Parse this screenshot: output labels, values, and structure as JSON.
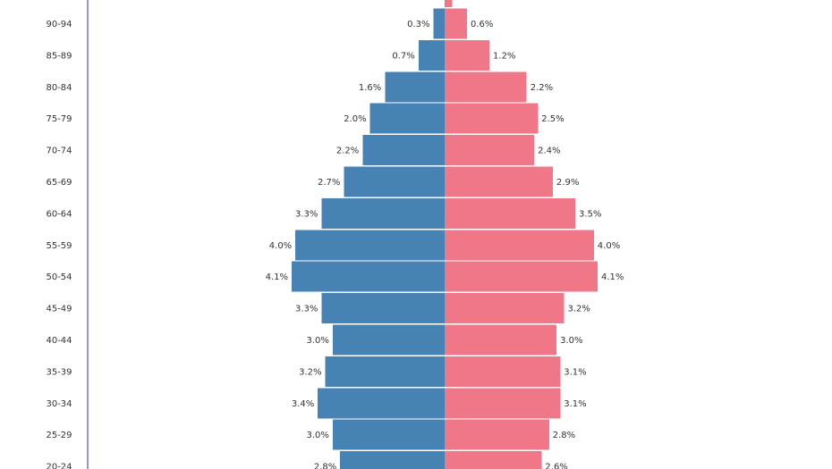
{
  "chart_data": {
    "type": "bar",
    "orientation": "horizontal",
    "layout": "population-pyramid",
    "categories": [
      "90-94",
      "85-89",
      "80-84",
      "75-79",
      "70-74",
      "65-69",
      "60-64",
      "55-59",
      "50-54",
      "45-49",
      "40-44",
      "35-39",
      "30-34",
      "25-29",
      "20-24"
    ],
    "series": [
      {
        "side": "left",
        "color": "#4682b4",
        "values": [
          0.3,
          0.7,
          1.6,
          2.0,
          2.2,
          2.7,
          3.3,
          4.0,
          4.1,
          3.3,
          3.0,
          3.2,
          3.4,
          3.0,
          2.8
        ],
        "labels": [
          "0.3%",
          "0.7%",
          "1.6%",
          "2.0%",
          "2.2%",
          "2.7%",
          "3.3%",
          "4.0%",
          "4.1%",
          "3.3%",
          "3.0%",
          "3.2%",
          "3.4%",
          "3.0%",
          "2.8%"
        ]
      },
      {
        "side": "right",
        "color": "#ef7788",
        "values": [
          0.6,
          1.2,
          2.2,
          2.5,
          2.4,
          2.9,
          3.5,
          4.0,
          4.1,
          3.2,
          3.0,
          3.1,
          3.1,
          2.8,
          2.6
        ],
        "labels": [
          "0.6%",
          "1.2%",
          "2.2%",
          "2.5%",
          "2.4%",
          "2.9%",
          "3.5%",
          "4.0%",
          "4.1%",
          "3.2%",
          "3.0%",
          "3.1%",
          "3.1%",
          "2.8%",
          "2.6%"
        ]
      }
    ],
    "partial_top_bar": {
      "side": "right",
      "value": 0.2
    },
    "xlim": [
      0,
      5
    ],
    "value_unit": "%",
    "grid": false,
    "legend": "none",
    "title": "",
    "xlabel": "",
    "ylabel": ""
  }
}
